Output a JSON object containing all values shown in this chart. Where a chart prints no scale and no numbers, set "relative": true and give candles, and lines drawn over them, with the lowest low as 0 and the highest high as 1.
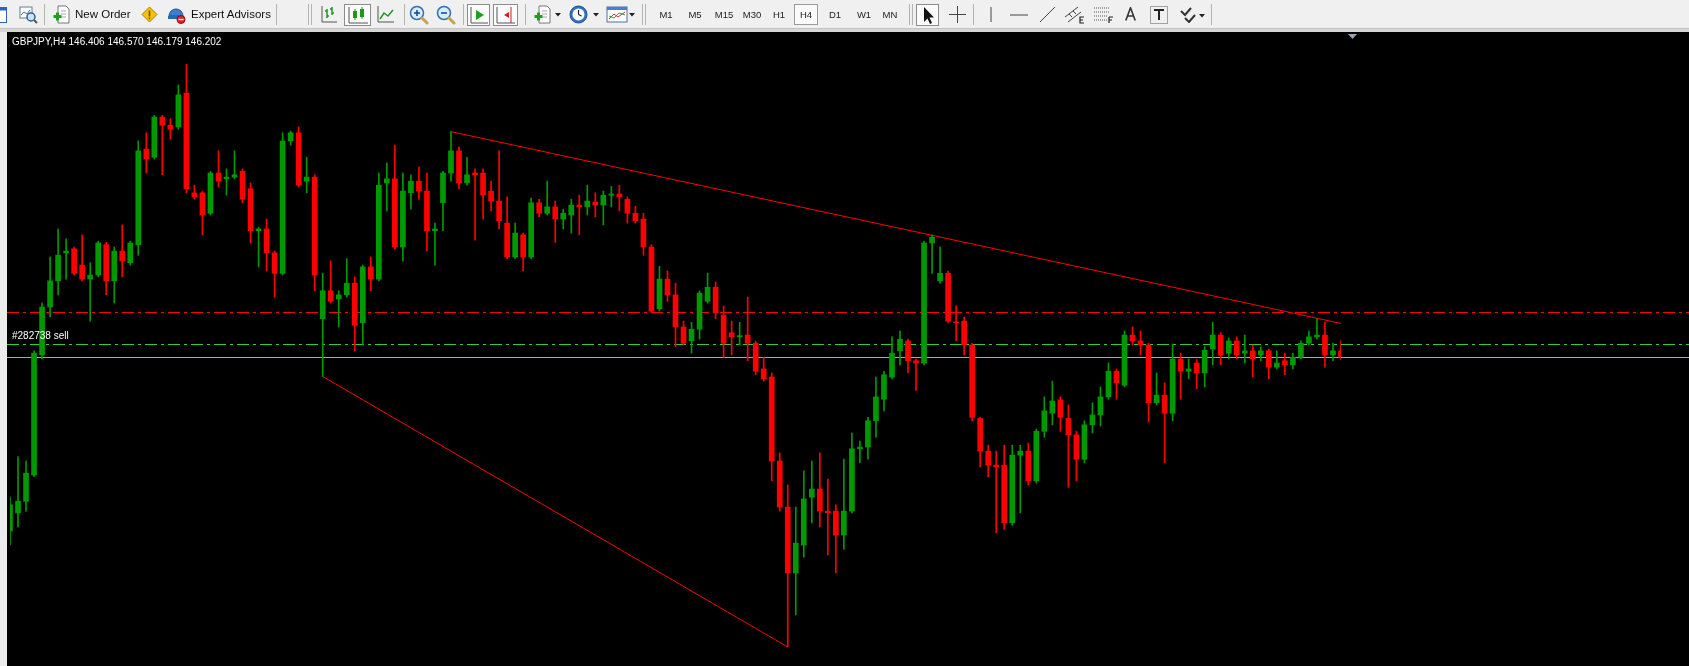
{
  "chart_data": {
    "type": "candlestick",
    "title": "GBPJPY,H4 146.406 146.570 146.179 146.202",
    "relative": true,
    "annotations": [
      "New Order",
      "Expert Advisors",
      "M1",
      "M5",
      "M15",
      "M30",
      "H1",
      "H4",
      "D1",
      "W1",
      "MN"
    ],
    "categories": [
      null,
      null,
      null,
      null,
      null,
      null,
      null,
      null,
      null,
      null,
      null,
      null,
      null,
      null,
      null,
      null,
      null,
      null,
      null,
      null,
      null,
      null,
      null,
      null,
      null,
      null,
      null,
      null,
      null,
      null,
      null,
      null,
      null,
      null,
      null,
      null,
      null,
      null,
      null,
      null,
      null,
      null,
      null,
      null,
      null,
      null,
      null,
      null,
      null,
      null,
      null,
      null,
      null,
      null,
      null,
      null,
      null,
      null,
      null,
      null,
      null,
      null,
      null,
      null,
      null,
      null,
      null,
      null,
      null,
      null,
      null,
      null,
      null,
      null,
      null,
      null,
      null,
      null,
      null,
      null,
      null,
      null,
      null,
      null,
      null,
      null,
      null,
      null,
      null,
      null,
      null,
      null,
      null,
      null,
      null,
      null,
      null,
      null,
      null,
      null,
      null,
      null,
      null,
      null,
      null,
      null,
      null,
      null,
      null,
      null,
      null,
      null,
      null,
      null,
      null,
      null,
      null,
      null,
      null,
      null,
      null,
      null,
      null,
      null,
      null,
      null,
      null,
      null,
      null,
      null,
      null,
      null,
      null,
      null,
      null,
      null,
      null,
      null,
      null,
      null,
      null,
      null,
      null,
      null,
      null,
      null,
      null,
      null,
      null,
      null,
      null,
      null,
      null,
      null,
      null,
      null,
      null,
      null,
      null,
      null,
      null,
      null,
      null,
      null,
      null,
      null,
      null
    ],
    "ohlc": [
      [
        0.199,
        0.257,
        0.175,
        0.244
      ],
      [
        0.23,
        0.326,
        0.206,
        0.25
      ],
      [
        0.25,
        0.319,
        0.233,
        0.298
      ],
      [
        0.295,
        0.508,
        0.292,
        0.504
      ],
      [
        0.501,
        0.59,
        0.494,
        0.583
      ],
      [
        0.583,
        0.669,
        0.566,
        0.628
      ],
      [
        0.628,
        0.717,
        0.604,
        0.672
      ],
      [
        0.676,
        0.7,
        0.631,
        0.679
      ],
      [
        0.683,
        0.686,
        0.638,
        0.641
      ],
      [
        0.655,
        0.707,
        0.628,
        0.631
      ],
      [
        0.631,
        0.659,
        0.559,
        0.638
      ],
      [
        0.638,
        0.696,
        0.635,
        0.693
      ],
      [
        0.69,
        0.694,
        0.604,
        0.628
      ],
      [
        0.628,
        0.686,
        0.59,
        0.679
      ],
      [
        0.679,
        0.724,
        0.635,
        0.662
      ],
      [
        0.659,
        0.696,
        0.655,
        0.693
      ],
      [
        0.69,
        0.868,
        0.672,
        0.851
      ],
      [
        0.854,
        0.882,
        0.813,
        0.837
      ],
      [
        0.84,
        0.912,
        0.837,
        0.909
      ],
      [
        0.909,
        0.912,
        0.81,
        0.895
      ],
      [
        0.895,
        0.906,
        0.871,
        0.888
      ],
      [
        0.892,
        0.964,
        0.888,
        0.947
      ],
      [
        0.95,
        1,
        0.779,
        0.786
      ],
      [
        0.779,
        0.792,
        0.768,
        0.772
      ],
      [
        0.779,
        0.782,
        0.707,
        0.741
      ],
      [
        0.744,
        0.816,
        0.741,
        0.813
      ],
      [
        0.813,
        0.851,
        0.789,
        0.799
      ],
      [
        0.803,
        0.82,
        0.775,
        0.806
      ],
      [
        0.806,
        0.851,
        0.803,
        0.81
      ],
      [
        0.816,
        0.82,
        0.762,
        0.768
      ],
      [
        0.786,
        0.796,
        0.693,
        0.714
      ],
      [
        0.714,
        0.72,
        0.652,
        0.717
      ],
      [
        0.717,
        0.734,
        0.645,
        0.676
      ],
      [
        0.676,
        0.679,
        0.6,
        0.641
      ],
      [
        0.641,
        0.882,
        0.638,
        0.868
      ],
      [
        0.868,
        0.885,
        0.861,
        0.882
      ],
      [
        0.882,
        0.892,
        0.789,
        0.792
      ],
      [
        0.799,
        0.84,
        0.779,
        0.806
      ],
      [
        0.806,
        0.81,
        0.611,
        0.638
      ],
      [
        0.563,
        0.641,
        0.464,
        0.611
      ],
      [
        0.611,
        0.662,
        0.59,
        0.593
      ],
      [
        0.597,
        0.611,
        0.549,
        0.604
      ],
      [
        0.604,
        0.666,
        0.6,
        0.624
      ],
      [
        0.624,
        0.635,
        0.508,
        0.552
      ],
      [
        0.556,
        0.655,
        0.518,
        0.652
      ],
      [
        0.652,
        0.669,
        0.611,
        0.631
      ],
      [
        0.631,
        0.813,
        0.628,
        0.792
      ],
      [
        0.796,
        0.83,
        0.748,
        0.803
      ],
      [
        0.803,
        0.861,
        0.683,
        0.686
      ],
      [
        0.686,
        0.813,
        0.662,
        0.782
      ],
      [
        0.779,
        0.81,
        0.751,
        0.799
      ],
      [
        0.799,
        0.823,
        0.768,
        0.782
      ],
      [
        0.782,
        0.813,
        0.679,
        0.714
      ],
      [
        0.714,
        0.727,
        0.655,
        0.717
      ],
      [
        0.762,
        0.816,
        0.714,
        0.813
      ],
      [
        0.813,
        0.884,
        0.799,
        0.851
      ],
      [
        0.851,
        0.858,
        0.786,
        0.796
      ],
      [
        0.796,
        0.84,
        0.792,
        0.81
      ],
      [
        0.813,
        0.82,
        0.698,
        0.81
      ],
      [
        0.813,
        0.82,
        0.734,
        0.775
      ],
      [
        0.782,
        0.799,
        0.748,
        0.765
      ],
      [
        0.765,
        0.851,
        0.717,
        0.731
      ],
      [
        0.727,
        0.772,
        0.666,
        0.669
      ],
      [
        0.669,
        0.727,
        0.666,
        0.71
      ],
      [
        0.707,
        0.71,
        0.645,
        0.669
      ],
      [
        0.669,
        0.77,
        0.666,
        0.762
      ],
      [
        0.762,
        0.768,
        0.738,
        0.744
      ],
      [
        0.744,
        0.799,
        0.741,
        0.755
      ],
      [
        0.755,
        0.765,
        0.694,
        0.734
      ],
      [
        0.734,
        0.751,
        0.717,
        0.744
      ],
      [
        0.741,
        0.768,
        0.71,
        0.758
      ],
      [
        0.758,
        0.775,
        0.707,
        0.755
      ],
      [
        0.755,
        0.792,
        0.741,
        0.765
      ],
      [
        0.763,
        0.779,
        0.738,
        0.758
      ],
      [
        0.758,
        0.782,
        0.724,
        0.775
      ],
      [
        0.775,
        0.79,
        0.755,
        0.777
      ],
      [
        0.777,
        0.792,
        0.748,
        0.772
      ],
      [
        0.768,
        0.772,
        0.727,
        0.744
      ],
      [
        0.744,
        0.756,
        0.727,
        0.731
      ],
      [
        0.734,
        0.744,
        0.672,
        0.686
      ],
      [
        0.686,
        0.69,
        0.573,
        0.576
      ],
      [
        0.58,
        0.653,
        0.576,
        0.631
      ],
      [
        0.631,
        0.645,
        0.593,
        0.604
      ],
      [
        0.604,
        0.624,
        0.515,
        0.549
      ],
      [
        0.549,
        0.559,
        0.518,
        0.521
      ],
      [
        0.525,
        0.557,
        0.504,
        0.545
      ],
      [
        0.545,
        0.611,
        0.528,
        0.607
      ],
      [
        0.593,
        0.641,
        0.59,
        0.617
      ],
      [
        0.617,
        0.626,
        0.563,
        0.573
      ],
      [
        0.569,
        0.585,
        0.497,
        0.521
      ],
      [
        0.539,
        0.559,
        0.501,
        0.532
      ],
      [
        0.532,
        0.557,
        0.518,
        0.534
      ],
      [
        0.535,
        0.6,
        0.491,
        0.521
      ],
      [
        0.521,
        0.525,
        0.467,
        0.473
      ],
      [
        0.477,
        0.497,
        0.456,
        0.46
      ],
      [
        0.463,
        0.47,
        0.285,
        0.319
      ],
      [
        0.319,
        0.333,
        0.233,
        0.24
      ],
      [
        0.24,
        0.278,
        0,
        0.127
      ],
      [
        0.127,
        0.24,
        0.055,
        0.178
      ],
      [
        0.175,
        0.302,
        0.154,
        0.254
      ],
      [
        0.257,
        0.319,
        0.213,
        0.271
      ],
      [
        0.271,
        0.333,
        0.206,
        0.233
      ],
      [
        0.233,
        0.288,
        0.158,
        0.23
      ],
      [
        0.233,
        0.244,
        0.127,
        0.192
      ],
      [
        0.192,
        0.322,
        0.168,
        0.233
      ],
      [
        0.233,
        0.367,
        0.23,
        0.34
      ],
      [
        0.34,
        0.353,
        0.316,
        0.343
      ],
      [
        0.343,
        0.394,
        0.322,
        0.388
      ],
      [
        0.388,
        0.463,
        0.36,
        0.429
      ],
      [
        0.425,
        0.473,
        0.405,
        0.467
      ],
      [
        0.463,
        0.532,
        0.46,
        0.504
      ],
      [
        0.508,
        0.542,
        0.484,
        0.528
      ],
      [
        0.525,
        0.528,
        0.47,
        0.491
      ],
      [
        0.491,
        0.494,
        0.44,
        0.487
      ],
      [
        0.487,
        0.696,
        0.484,
        0.693
      ],
      [
        0.693,
        0.707,
        0.641,
        0.703
      ],
      [
        0.628,
        0.686,
        0.624,
        0.641
      ],
      [
        0.641,
        0.645,
        0.556,
        0.559
      ],
      [
        0.557,
        0.585,
        0.525,
        0.556
      ],
      [
        0.559,
        0.566,
        0.501,
        0.518
      ],
      [
        0.518,
        0.521,
        0.388,
        0.394
      ],
      [
        0.392,
        0.394,
        0.309,
        0.336
      ],
      [
        0.336,
        0.346,
        0.292,
        0.312
      ],
      [
        0.312,
        0.336,
        0.196,
        0.309
      ],
      [
        0.312,
        0.346,
        0.202,
        0.213
      ],
      [
        0.213,
        0.346,
        0.209,
        0.329
      ],
      [
        0.329,
        0.346,
        0.23,
        0.336
      ],
      [
        0.336,
        0.35,
        0.278,
        0.285
      ],
      [
        0.285,
        0.374,
        0.281,
        0.37
      ],
      [
        0.37,
        0.429,
        0.36,
        0.405
      ],
      [
        0.401,
        0.456,
        0.381,
        0.422
      ],
      [
        0.424,
        0.429,
        0.37,
        0.394
      ],
      [
        0.392,
        0.415,
        0.274,
        0.364
      ],
      [
        0.364,
        0.37,
        0.285,
        0.322
      ],
      [
        0.322,
        0.388,
        0.316,
        0.381
      ],
      [
        0.381,
        0.419,
        0.367,
        0.398
      ],
      [
        0.398,
        0.446,
        0.379,
        0.429
      ],
      [
        0.429,
        0.487,
        0.425,
        0.473
      ],
      [
        0.473,
        0.477,
        0.425,
        0.453
      ],
      [
        0.449,
        0.542,
        0.446,
        0.535
      ],
      [
        0.535,
        0.549,
        0.518,
        0.525
      ],
      [
        0.525,
        0.542,
        0.501,
        0.518
      ],
      [
        0.518,
        0.521,
        0.386,
        0.419
      ],
      [
        0.419,
        0.47,
        0.415,
        0.432
      ],
      [
        0.432,
        0.453,
        0.316,
        0.401
      ],
      [
        0.401,
        0.52,
        0.388,
        0.494
      ],
      [
        0.494,
        0.504,
        0.425,
        0.473
      ],
      [
        0.473,
        0.494,
        0.46,
        0.477
      ],
      [
        0.487,
        0.493,
        0.443,
        0.47
      ],
      [
        0.47,
        0.515,
        0.446,
        0.509
      ],
      [
        0.511,
        0.557,
        0.484,
        0.535
      ],
      [
        0.535,
        0.539,
        0.484,
        0.501
      ],
      [
        0.504,
        0.53,
        0.494,
        0.525
      ],
      [
        0.525,
        0.532,
        0.494,
        0.501
      ],
      [
        0.504,
        0.535,
        0.487,
        0.508
      ],
      [
        0.508,
        0.518,
        0.463,
        0.494
      ],
      [
        0.501,
        0.515,
        0.491,
        0.508
      ],
      [
        0.508,
        0.511,
        0.46,
        0.48
      ],
      [
        0.48,
        0.508,
        0.477,
        0.487
      ],
      [
        0.491,
        0.504,
        0.467,
        0.484
      ],
      [
        0.484,
        0.504,
        0.477,
        0.497
      ],
      [
        0.497,
        0.525,
        0.494,
        0.521
      ],
      [
        0.521,
        0.542,
        0.518,
        0.532
      ],
      [
        0.532,
        0.563,
        0.528,
        0.535
      ],
      [
        0.535,
        0.557,
        0.48,
        0.501
      ],
      [
        0.501,
        0.521,
        0.491,
        0.508
      ],
      [
        0.508,
        0.525,
        0.493,
        0.497
      ]
    ],
    "colors": [
      "#009a00",
      "#009a00",
      "#009a00",
      "#009a00",
      "#009a00",
      "#009a00",
      "#009a00",
      "#009a00",
      "#ff0000",
      "#ff0000",
      "#009a00",
      "#009a00",
      "#ff0000",
      "#009a00",
      "#ff0000",
      "#009a00",
      "#009a00",
      "#ff0000",
      "#009a00",
      "#ff0000",
      "#ff0000",
      "#009a00",
      "#ff0000",
      "#ff0000",
      "#ff0000",
      "#009a00",
      "#ff0000",
      "#009a00",
      "#009a00",
      "#ff0000",
      "#ff0000",
      "#009a00",
      "#ff0000",
      "#ff0000",
      "#009a00",
      "#009a00",
      "#ff0000",
      "#009a00",
      "#ff0000",
      "#009a00",
      "#ff0000",
      "#009a00",
      "#009a00",
      "#ff0000",
      "#009a00",
      "#ff0000",
      "#009a00",
      "#009a00",
      "#ff0000",
      "#009a00",
      "#009a00",
      "#ff0000",
      "#ff0000",
      "#009a00",
      "#009a00",
      "#009a00",
      "#ff0000",
      "#009a00",
      "#ff0000",
      "#ff0000",
      "#ff0000",
      "#ff0000",
      "#ff0000",
      "#009a00",
      "#ff0000",
      "#009a00",
      "#ff0000",
      "#009a00",
      "#ff0000",
      "#009a00",
      "#009a00",
      "#ff0000",
      "#009a00",
      "#ff0000",
      "#009a00",
      "#009a00",
      "#ff0000",
      "#ff0000",
      "#ff0000",
      "#ff0000",
      "#ff0000",
      "#009a00",
      "#ff0000",
      "#ff0000",
      "#ff0000",
      "#009a00",
      "#009a00",
      "#009a00",
      "#ff0000",
      "#ff0000",
      "#ff0000",
      "#009a00",
      "#ff0000",
      "#ff0000",
      "#ff0000",
      "#ff0000",
      "#ff0000",
      "#ff0000",
      "#009a00",
      "#009a00",
      "#009a00",
      "#ff0000",
      "#ff0000",
      "#ff0000",
      "#009a00",
      "#009a00",
      "#009a00",
      "#009a00",
      "#009a00",
      "#009a00",
      "#009a00",
      "#009a00",
      "#ff0000",
      "#ff0000",
      "#009a00",
      "#009a00",
      "#009a00",
      "#ff0000",
      "#ff0000",
      "#ff0000",
      "#ff0000",
      "#ff0000",
      "#ff0000",
      "#ff0000",
      "#ff0000",
      "#009a00",
      "#009a00",
      "#ff0000",
      "#009a00",
      "#009a00",
      "#009a00",
      "#ff0000",
      "#ff0000",
      "#ff0000",
      "#009a00",
      "#009a00",
      "#009a00",
      "#009a00",
      "#ff0000",
      "#009a00",
      "#ff0000",
      "#ff0000",
      "#ff0000",
      "#009a00",
      "#ff0000",
      "#009a00",
      "#ff0000",
      "#009a00",
      "#ff0000",
      "#009a00",
      "#009a00",
      "#ff0000",
      "#009a00",
      "#ff0000",
      "#009a00",
      "#ff0000",
      "#009a00",
      "#ff0000",
      "#009a00",
      "#ff0000",
      "#009a00",
      "#009a00",
      "#009a00",
      "#009a00",
      "#ff0000",
      "#009a00",
      "#ff0000"
    ],
    "series": [
      {
        "type": "line",
        "color": "#ff0000",
        "values": [
          null,
          null,
          null,
          null,
          null,
          null,
          null,
          null,
          null,
          null,
          null,
          null,
          null,
          null,
          null,
          null,
          null,
          null,
          null,
          null,
          null,
          null,
          null,
          null,
          null,
          null,
          null,
          null,
          null,
          null,
          null,
          null,
          null,
          null,
          null,
          null,
          null,
          null,
          null,
          null,
          null,
          null,
          null,
          null,
          null,
          null,
          null,
          null,
          null,
          null,
          null,
          null,
          null,
          null,
          null,
          0.884,
          null,
          null,
          null,
          null,
          null,
          null,
          null,
          null,
          null,
          null,
          null,
          null,
          null,
          null,
          null,
          null,
          null,
          null,
          null,
          null,
          null,
          null,
          null,
          null,
          null,
          null,
          null,
          null,
          null,
          null,
          null,
          null,
          null,
          null,
          null,
          null,
          null,
          null,
          null,
          null,
          null,
          null,
          null,
          null,
          null,
          null,
          null,
          null,
          null,
          null,
          null,
          null,
          null,
          null,
          null,
          null,
          null,
          null,
          null,
          null,
          null,
          null,
          null,
          null,
          null,
          null,
          null,
          null,
          null,
          null,
          null,
          null,
          null,
          null,
          null,
          null,
          null,
          null,
          null,
          null,
          null,
          null,
          null,
          null,
          null,
          null,
          null,
          null,
          null,
          null,
          null,
          null,
          null,
          null,
          null,
          null,
          null,
          null,
          null,
          null,
          null,
          null,
          null,
          null,
          null,
          null,
          null,
          null,
          null,
          null,
          0.555
        ]
      },
      {
        "type": "line",
        "color": "#ff0000",
        "values": [
          null,
          null,
          null,
          null,
          null,
          null,
          null,
          null,
          null,
          null,
          null,
          null,
          null,
          null,
          null,
          null,
          null,
          null,
          null,
          null,
          null,
          null,
          null,
          null,
          null,
          null,
          null,
          null,
          null,
          null,
          null,
          null,
          null,
          null,
          null,
          null,
          null,
          null,
          null,
          0.464,
          null,
          null,
          null,
          null,
          null,
          null,
          null,
          null,
          null,
          null,
          null,
          null,
          null,
          null,
          null,
          null,
          null,
          null,
          null,
          null,
          null,
          null,
          null,
          null,
          null,
          null,
          null,
          null,
          null,
          null,
          null,
          null,
          null,
          null,
          null,
          null,
          null,
          null,
          null,
          null,
          null,
          null,
          null,
          null,
          null,
          null,
          null,
          null,
          null,
          null,
          null,
          null,
          null,
          null,
          null,
          null,
          null,
          0,
          null,
          null,
          null,
          null,
          null,
          null,
          null,
          null,
          null,
          null,
          null,
          null,
          null,
          null,
          null,
          null,
          null,
          null,
          null,
          null,
          null,
          null,
          null,
          null,
          null,
          null,
          null,
          null,
          null,
          null,
          null,
          null,
          null,
          null,
          null,
          null,
          null,
          null,
          null,
          null,
          null,
          null,
          null,
          null,
          null,
          null,
          null,
          null,
          null,
          null,
          null,
          null,
          null,
          null,
          null,
          null,
          null,
          null,
          null,
          null,
          null,
          null,
          null,
          null,
          null,
          null,
          null,
          null,
          null
        ]
      }
    ],
    "ref_lines": [
      {
        "axis": "y",
        "value": 0.575,
        "color": "#ff0000",
        "line_style": "dashed"
      },
      {
        "axis": "y",
        "value": 0.519,
        "label": "#282738 sell",
        "color": "#32cd32",
        "line_style": "dashed"
      },
      {
        "axis": "y",
        "value": 0.497,
        "color": "#a0a8b4",
        "line_style": "solid"
      }
    ]
  }
}
